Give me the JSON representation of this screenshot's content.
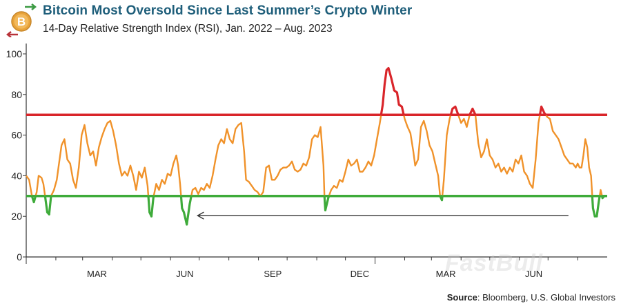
{
  "header": {
    "title": "Bitcoin Most Oversold Since Last Summer’s Crypto Winter",
    "subtitle": "14-Day Relative Strength Index (RSI), Jan. 2022 – Aug. 2023",
    "logo_icon": "bitcoin-exchange-icon"
  },
  "source": {
    "label": "Source",
    "text": ": Bloomberg, U.S. Global Investors"
  },
  "watermark": "FastBull",
  "colors": {
    "rsi_line": "#f0922a",
    "overbought": "#d9252a",
    "oversold": "#3eab3a",
    "axis": "#333333",
    "arrow": "#333333"
  },
  "chart_data": {
    "type": "line",
    "title": "Bitcoin Most Oversold Since Last Summer’s Crypto Winter",
    "subtitle": "14-Day Relative Strength Index (RSI), Jan. 2022 – Aug. 2023",
    "xlabel": "",
    "ylabel": "",
    "ylim": [
      0,
      100
    ],
    "yticks": [
      0,
      20,
      40,
      60,
      80,
      100
    ],
    "xticks": [
      "MAR",
      "JUN",
      "SEP",
      "DEC",
      "MAR",
      "JUN"
    ],
    "x_range": [
      "2022-01-01",
      "2023-08-05"
    ],
    "reference_lines": [
      {
        "name": "overbought",
        "y": 70,
        "color": "#d9252a"
      },
      {
        "name": "oversold",
        "y": 30,
        "color": "#3eab3a"
      }
    ],
    "annotation": {
      "type": "arrow",
      "from_date": "2023-07-31",
      "to_date": "2022-06-25",
      "y": 19
    },
    "series": [
      {
        "values": [
          [
            "2022-01-01",
            40
          ],
          [
            "2022-01-04",
            38
          ],
          [
            "2022-01-07",
            30
          ],
          [
            "2022-01-09",
            27
          ],
          [
            "2022-01-12",
            32
          ],
          [
            "2022-01-14",
            40
          ],
          [
            "2022-01-17",
            39
          ],
          [
            "2022-01-19",
            36
          ],
          [
            "2022-01-21",
            29
          ],
          [
            "2022-01-23",
            22
          ],
          [
            "2022-01-25",
            21
          ],
          [
            "2022-01-27",
            30
          ],
          [
            "2022-01-30",
            33
          ],
          [
            "2022-02-02",
            38
          ],
          [
            "2022-02-04",
            45
          ],
          [
            "2022-02-07",
            55
          ],
          [
            "2022-02-10",
            58
          ],
          [
            "2022-02-13",
            48
          ],
          [
            "2022-02-16",
            46
          ],
          [
            "2022-02-19",
            38
          ],
          [
            "2022-02-22",
            34
          ],
          [
            "2022-02-25",
            44
          ],
          [
            "2022-02-28",
            60
          ],
          [
            "2022-03-03",
            65
          ],
          [
            "2022-03-06",
            56
          ],
          [
            "2022-03-09",
            50
          ],
          [
            "2022-03-12",
            52
          ],
          [
            "2022-03-15",
            45
          ],
          [
            "2022-03-18",
            54
          ],
          [
            "2022-03-21",
            59
          ],
          [
            "2022-03-24",
            63
          ],
          [
            "2022-03-27",
            66
          ],
          [
            "2022-03-30",
            67
          ],
          [
            "2022-04-02",
            62
          ],
          [
            "2022-04-05",
            55
          ],
          [
            "2022-04-08",
            46
          ],
          [
            "2022-04-11",
            40
          ],
          [
            "2022-04-14",
            42
          ],
          [
            "2022-04-17",
            40
          ],
          [
            "2022-04-20",
            45
          ],
          [
            "2022-04-23",
            40
          ],
          [
            "2022-04-26",
            33
          ],
          [
            "2022-04-29",
            42
          ],
          [
            "2022-05-02",
            39
          ],
          [
            "2022-05-05",
            44
          ],
          [
            "2022-05-08",
            35
          ],
          [
            "2022-05-10",
            22
          ],
          [
            "2022-05-12",
            20
          ],
          [
            "2022-05-14",
            29
          ],
          [
            "2022-05-17",
            36
          ],
          [
            "2022-05-20",
            33
          ],
          [
            "2022-05-23",
            38
          ],
          [
            "2022-05-26",
            36
          ],
          [
            "2022-05-29",
            41
          ],
          [
            "2022-06-01",
            40
          ],
          [
            "2022-06-04",
            46
          ],
          [
            "2022-06-07",
            50
          ],
          [
            "2022-06-09",
            45
          ],
          [
            "2022-06-11",
            36
          ],
          [
            "2022-06-13",
            24
          ],
          [
            "2022-06-15",
            22
          ],
          [
            "2022-06-18",
            16
          ],
          [
            "2022-06-21",
            26
          ],
          [
            "2022-06-24",
            33
          ],
          [
            "2022-06-27",
            34
          ],
          [
            "2022-06-30",
            31
          ],
          [
            "2022-07-03",
            34
          ],
          [
            "2022-07-06",
            33
          ],
          [
            "2022-07-09",
            36
          ],
          [
            "2022-07-12",
            34
          ],
          [
            "2022-07-15",
            40
          ],
          [
            "2022-07-18",
            48
          ],
          [
            "2022-07-21",
            55
          ],
          [
            "2022-07-24",
            58
          ],
          [
            "2022-07-27",
            56
          ],
          [
            "2022-07-30",
            63
          ],
          [
            "2022-08-02",
            58
          ],
          [
            "2022-08-05",
            56
          ],
          [
            "2022-08-08",
            63
          ],
          [
            "2022-08-11",
            65
          ],
          [
            "2022-08-14",
            66
          ],
          [
            "2022-08-17",
            52
          ],
          [
            "2022-08-19",
            38
          ],
          [
            "2022-08-22",
            37
          ],
          [
            "2022-08-25",
            35
          ],
          [
            "2022-08-28",
            33
          ],
          [
            "2022-08-31",
            32
          ],
          [
            "2022-09-03",
            30
          ],
          [
            "2022-09-06",
            32
          ],
          [
            "2022-09-09",
            44
          ],
          [
            "2022-09-12",
            45
          ],
          [
            "2022-09-15",
            38
          ],
          [
            "2022-09-18",
            38
          ],
          [
            "2022-09-21",
            40
          ],
          [
            "2022-09-24",
            43
          ],
          [
            "2022-09-27",
            44
          ],
          [
            "2022-09-30",
            44
          ],
          [
            "2022-10-03",
            45
          ],
          [
            "2022-10-06",
            47
          ],
          [
            "2022-10-09",
            43
          ],
          [
            "2022-10-12",
            42
          ],
          [
            "2022-10-15",
            43
          ],
          [
            "2022-10-18",
            46
          ],
          [
            "2022-10-21",
            45
          ],
          [
            "2022-10-24",
            49
          ],
          [
            "2022-10-27",
            58
          ],
          [
            "2022-10-30",
            60
          ],
          [
            "2022-11-02",
            59
          ],
          [
            "2022-11-05",
            64
          ],
          [
            "2022-11-08",
            45
          ],
          [
            "2022-11-09",
            30
          ],
          [
            "2022-11-10",
            23
          ],
          [
            "2022-11-13",
            29
          ],
          [
            "2022-11-16",
            33
          ],
          [
            "2022-11-19",
            35
          ],
          [
            "2022-11-22",
            34
          ],
          [
            "2022-11-25",
            38
          ],
          [
            "2022-11-28",
            37
          ],
          [
            "2022-12-01",
            42
          ],
          [
            "2022-12-04",
            48
          ],
          [
            "2022-12-07",
            45
          ],
          [
            "2022-12-10",
            46
          ],
          [
            "2022-12-13",
            48
          ],
          [
            "2022-12-16",
            42
          ],
          [
            "2022-12-19",
            42
          ],
          [
            "2022-12-22",
            44
          ],
          [
            "2022-12-25",
            47
          ],
          [
            "2022-12-28",
            45
          ],
          [
            "2022-12-31",
            50
          ],
          [
            "2023-01-03",
            58
          ],
          [
            "2023-01-06",
            66
          ],
          [
            "2023-01-09",
            75
          ],
          [
            "2023-01-11",
            85
          ],
          [
            "2023-01-13",
            92
          ],
          [
            "2023-01-15",
            93
          ],
          [
            "2023-01-18",
            88
          ],
          [
            "2023-01-21",
            82
          ],
          [
            "2023-01-24",
            81
          ],
          [
            "2023-01-26",
            75
          ],
          [
            "2023-01-29",
            74
          ],
          [
            "2023-02-01",
            68
          ],
          [
            "2023-02-04",
            64
          ],
          [
            "2023-02-07",
            61
          ],
          [
            "2023-02-10",
            52
          ],
          [
            "2023-02-12",
            45
          ],
          [
            "2023-02-15",
            48
          ],
          [
            "2023-02-18",
            64
          ],
          [
            "2023-02-21",
            67
          ],
          [
            "2023-02-24",
            62
          ],
          [
            "2023-02-27",
            55
          ],
          [
            "2023-03-02",
            52
          ],
          [
            "2023-03-05",
            46
          ],
          [
            "2023-03-08",
            40
          ],
          [
            "2023-03-10",
            30
          ],
          [
            "2023-03-12",
            28
          ],
          [
            "2023-03-14",
            38
          ],
          [
            "2023-03-17",
            60
          ],
          [
            "2023-03-20",
            68
          ],
          [
            "2023-03-23",
            73
          ],
          [
            "2023-03-26",
            74
          ],
          [
            "2023-03-29",
            70
          ],
          [
            "2023-04-01",
            66
          ],
          [
            "2023-04-04",
            68
          ],
          [
            "2023-04-07",
            64
          ],
          [
            "2023-04-10",
            70
          ],
          [
            "2023-04-13",
            73
          ],
          [
            "2023-04-16",
            70
          ],
          [
            "2023-04-19",
            56
          ],
          [
            "2023-04-22",
            49
          ],
          [
            "2023-04-25",
            52
          ],
          [
            "2023-04-28",
            58
          ],
          [
            "2023-05-01",
            50
          ],
          [
            "2023-05-04",
            48
          ],
          [
            "2023-05-07",
            44
          ],
          [
            "2023-05-10",
            46
          ],
          [
            "2023-05-13",
            42
          ],
          [
            "2023-05-16",
            44
          ],
          [
            "2023-05-19",
            41
          ],
          [
            "2023-05-22",
            44
          ],
          [
            "2023-05-25",
            42
          ],
          [
            "2023-05-28",
            48
          ],
          [
            "2023-05-31",
            46
          ],
          [
            "2023-06-03",
            50
          ],
          [
            "2023-06-06",
            42
          ],
          [
            "2023-06-09",
            40
          ],
          [
            "2023-06-12",
            36
          ],
          [
            "2023-06-15",
            34
          ],
          [
            "2023-06-18",
            48
          ],
          [
            "2023-06-21",
            66
          ],
          [
            "2023-06-24",
            74
          ],
          [
            "2023-06-27",
            71
          ],
          [
            "2023-06-30",
            69
          ],
          [
            "2023-07-03",
            68
          ],
          [
            "2023-07-06",
            62
          ],
          [
            "2023-07-09",
            60
          ],
          [
            "2023-07-12",
            58
          ],
          [
            "2023-07-15",
            54
          ],
          [
            "2023-07-18",
            50
          ],
          [
            "2023-07-21",
            48
          ],
          [
            "2023-07-24",
            46
          ],
          [
            "2023-07-27",
            46
          ],
          [
            "2023-07-30",
            44
          ],
          [
            "2023-08-01",
            46
          ],
          [
            "2023-08-03",
            44
          ],
          [
            "2023-08-05",
            44
          ],
          [
            "2023-08-07",
            50
          ],
          [
            "2023-08-09",
            58
          ],
          [
            "2023-08-11",
            54
          ],
          [
            "2023-08-13",
            44
          ],
          [
            "2023-08-15",
            40
          ],
          [
            "2023-08-17",
            24
          ],
          [
            "2023-08-19",
            20
          ],
          [
            "2023-08-21",
            20
          ],
          [
            "2023-08-23",
            27
          ],
          [
            "2023-08-25",
            33
          ],
          [
            "2023-08-27",
            29
          ],
          [
            "2023-08-29",
            30
          ]
        ]
      }
    ]
  }
}
